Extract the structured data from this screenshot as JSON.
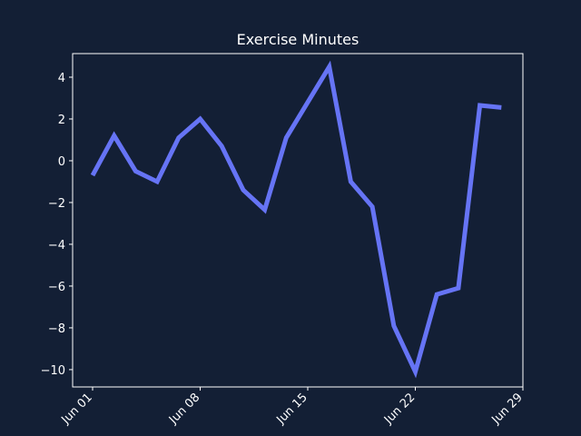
{
  "chart_data": {
    "type": "line",
    "title": "Exercise Minutes",
    "x": [
      1,
      2.4,
      3.8,
      5.2,
      6.6,
      8,
      9.4,
      10.8,
      12.2,
      13.6,
      15,
      16.4,
      17.8,
      19.2,
      20.6,
      22,
      23.4,
      24.8,
      26.2,
      27.6
    ],
    "series": [
      {
        "name": "Exercise Minutes",
        "color": "#6674f5",
        "values": [
          -0.7,
          1.2,
          -0.5,
          -1.0,
          1.1,
          2.0,
          0.7,
          -1.4,
          -2.35,
          1.1,
          2.8,
          4.5,
          -1.0,
          -2.2,
          -7.9,
          -10.1,
          -6.4,
          -6.1,
          2.65,
          2.55
        ]
      }
    ],
    "xlim": [
      -0.3,
      29
    ],
    "xticks": [
      {
        "value": 1,
        "label": "Jun 01"
      },
      {
        "value": 8,
        "label": "Jun 08"
      },
      {
        "value": 15,
        "label": "Jun 15"
      },
      {
        "value": 22,
        "label": "Jun 22"
      },
      {
        "value": 29,
        "label": "Jun 29"
      }
    ],
    "ylim": [
      -10.83,
      5.13
    ],
    "yticks": [
      {
        "value": -10,
        "label": "−10"
      },
      {
        "value": -8,
        "label": "−8"
      },
      {
        "value": -6,
        "label": "−6"
      },
      {
        "value": -4,
        "label": "−4"
      },
      {
        "value": -2,
        "label": "−2"
      },
      0,
      2,
      4
    ]
  }
}
